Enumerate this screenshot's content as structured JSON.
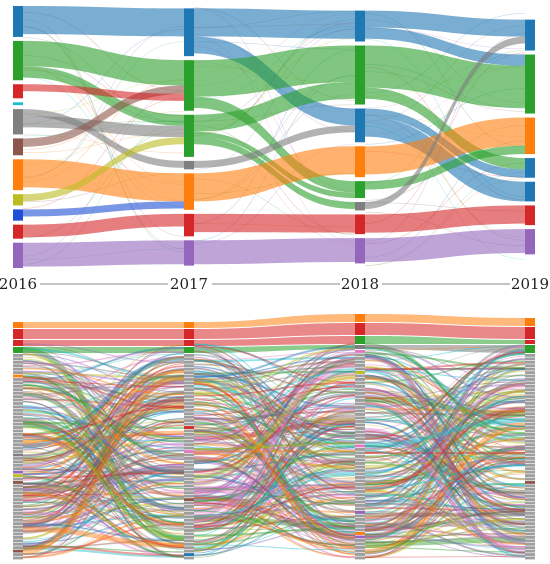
{
  "chart_data": [
    {
      "type": "sankey",
      "panel": "top",
      "columns": [
        "2016",
        "2017",
        "2018",
        "2019"
      ],
      "nodes": [
        [
          {
            "color": "#1f77b4",
            "value": 22
          },
          {
            "color": "#2ca02c",
            "value": 28
          },
          {
            "color": "#d62728",
            "value": 10
          },
          {
            "color": "#17becf",
            "value": 2
          },
          {
            "color": "#7f7f7f",
            "value": 18
          },
          {
            "color": "#8c564b",
            "value": 12
          },
          {
            "color": "#ff7f0e",
            "value": 22
          },
          {
            "color": "#bcbd22",
            "value": 8
          },
          {
            "color": "#1f4fd6",
            "value": 8
          },
          {
            "color": "#d62728",
            "value": 10
          },
          {
            "color": "#9467bd",
            "value": 18
          }
        ],
        [
          {
            "color": "#1f77b4",
            "value": 34
          },
          {
            "color": "#2ca02c",
            "value": 36
          },
          {
            "color": "#2ca02c",
            "value": 30
          },
          {
            "color": "#7f7f7f",
            "value": 6
          },
          {
            "color": "#ff7f0e",
            "value": 26
          },
          {
            "color": "#d62728",
            "value": 16
          },
          {
            "color": "#9467bd",
            "value": 18
          }
        ],
        [
          {
            "color": "#1f77b4",
            "value": 22
          },
          {
            "color": "#2ca02c",
            "value": 42
          },
          {
            "color": "#1f77b4",
            "value": 24
          },
          {
            "color": "#ff7f0e",
            "value": 22
          },
          {
            "color": "#2ca02c",
            "value": 12
          },
          {
            "color": "#7f7f7f",
            "value": 6
          },
          {
            "color": "#d62728",
            "value": 14
          },
          {
            "color": "#9467bd",
            "value": 18
          }
        ],
        [
          {
            "color": "#1f77b4",
            "value": 22
          },
          {
            "color": "#2ca02c",
            "value": 42
          },
          {
            "color": "#ff7f0e",
            "value": 26
          },
          {
            "color": "#1f77b4",
            "value": 14
          },
          {
            "color": "#1f77b4",
            "value": 14
          },
          {
            "color": "#d62728",
            "value": 14
          },
          {
            "color": "#9467bd",
            "value": 18
          }
        ]
      ],
      "links": [
        {
          "from": [
            0,
            0
          ],
          "to": [
            1,
            0
          ],
          "value": 20
        },
        {
          "from": [
            0,
            1
          ],
          "to": [
            1,
            1
          ],
          "value": 18
        },
        {
          "from": [
            0,
            1
          ],
          "to": [
            1,
            2
          ],
          "value": 8
        },
        {
          "from": [
            0,
            4
          ],
          "to": [
            1,
            3
          ],
          "value": 5
        },
        {
          "from": [
            0,
            4
          ],
          "to": [
            1,
            2
          ],
          "value": 8
        },
        {
          "from": [
            0,
            6
          ],
          "to": [
            1,
            4
          ],
          "value": 20
        },
        {
          "from": [
            0,
            5
          ],
          "to": [
            1,
            1
          ],
          "value": 6
        },
        {
          "from": [
            0,
            9
          ],
          "to": [
            1,
            5
          ],
          "value": 9
        },
        {
          "from": [
            0,
            10
          ],
          "to": [
            1,
            6
          ],
          "value": 17
        },
        {
          "from": [
            0,
            2
          ],
          "to": [
            1,
            1
          ],
          "value": 5
        },
        {
          "from": [
            0,
            8
          ],
          "to": [
            1,
            4
          ],
          "value": 5
        },
        {
          "from": [
            0,
            7
          ],
          "to": [
            1,
            2
          ],
          "value": 5
        },
        {
          "from": [
            1,
            0
          ],
          "to": [
            2,
            0
          ],
          "value": 20
        },
        {
          "from": [
            1,
            0
          ],
          "to": [
            2,
            2
          ],
          "value": 12
        },
        {
          "from": [
            1,
            1
          ],
          "to": [
            2,
            1
          ],
          "value": 26
        },
        {
          "from": [
            1,
            1
          ],
          "to": [
            2,
            4
          ],
          "value": 8
        },
        {
          "from": [
            1,
            2
          ],
          "to": [
            2,
            1
          ],
          "value": 12
        },
        {
          "from": [
            1,
            2
          ],
          "to": [
            2,
            4
          ],
          "value": 4
        },
        {
          "from": [
            1,
            2
          ],
          "to": [
            2,
            5
          ],
          "value": 5
        },
        {
          "from": [
            1,
            4
          ],
          "to": [
            2,
            3
          ],
          "value": 20
        },
        {
          "from": [
            1,
            5
          ],
          "to": [
            2,
            6
          ],
          "value": 13
        },
        {
          "from": [
            1,
            6
          ],
          "to": [
            2,
            7
          ],
          "value": 17
        },
        {
          "from": [
            1,
            3
          ],
          "to": [
            2,
            2
          ],
          "value": 5
        },
        {
          "from": [
            2,
            0
          ],
          "to": [
            3,
            0
          ],
          "value": 12
        },
        {
          "from": [
            2,
            0
          ],
          "to": [
            3,
            1
          ],
          "value": 8
        },
        {
          "from": [
            2,
            1
          ],
          "to": [
            3,
            1
          ],
          "value": 30
        },
        {
          "from": [
            2,
            1
          ],
          "to": [
            3,
            3
          ],
          "value": 8
        },
        {
          "from": [
            2,
            2
          ],
          "to": [
            3,
            3
          ],
          "value": 6
        },
        {
          "from": [
            2,
            2
          ],
          "to": [
            3,
            4
          ],
          "value": 14
        },
        {
          "from": [
            2,
            3
          ],
          "to": [
            3,
            2
          ],
          "value": 20
        },
        {
          "from": [
            2,
            4
          ],
          "to": [
            3,
            2
          ],
          "value": 6
        },
        {
          "from": [
            2,
            6
          ],
          "to": [
            3,
            5
          ],
          "value": 13
        },
        {
          "from": [
            2,
            7
          ],
          "to": [
            3,
            6
          ],
          "value": 17
        },
        {
          "from": [
            2,
            5
          ],
          "to": [
            3,
            0
          ],
          "value": 5
        }
      ]
    },
    {
      "type": "sankey",
      "panel": "bottom",
      "columns": [
        "2016",
        "2017",
        "2018",
        "2019"
      ],
      "top_categories": [
        [
          {
            "color": "#ff7f0e",
            "value": 6
          },
          {
            "color": "#d62728",
            "value": 10
          },
          {
            "color": "#d62728",
            "value": 6
          },
          {
            "color": "#2ca02c",
            "value": 6
          }
        ],
        [
          {
            "color": "#ff7f0e",
            "value": 6
          },
          {
            "color": "#d62728",
            "value": 10
          },
          {
            "color": "#d62728",
            "value": 6
          },
          {
            "color": "#2ca02c",
            "value": 6
          }
        ],
        [
          {
            "color": "#ff7f0e",
            "value": 8
          },
          {
            "color": "#d62728",
            "value": 12
          },
          {
            "color": "#2ca02c",
            "value": 8
          },
          {
            "color": "#7f7f7f",
            "value": 4
          }
        ],
        [
          {
            "color": "#ff7f0e",
            "value": 8
          },
          {
            "color": "#d62728",
            "value": 12
          },
          {
            "color": "#d62728",
            "value": 4
          },
          {
            "color": "#2ca02c",
            "value": 8
          }
        ]
      ],
      "long_tail": {
        "color": "#9e9e9e",
        "segments_per_column": 60
      },
      "link_palette": [
        "#1f77b4",
        "#ff7f0e",
        "#2ca02c",
        "#d62728",
        "#9467bd",
        "#8c564b",
        "#e377c2",
        "#7f7f7f",
        "#bcbd22",
        "#17becf"
      ]
    }
  ]
}
